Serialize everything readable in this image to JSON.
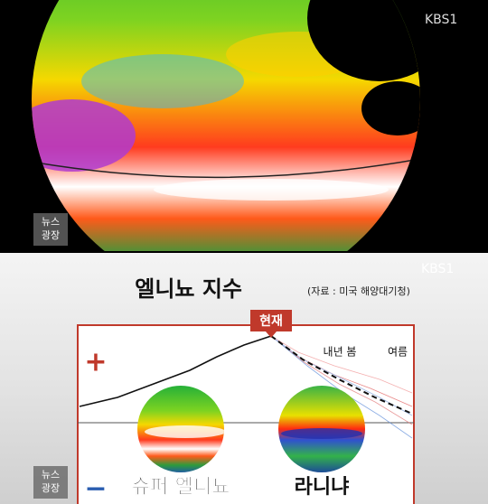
{
  "top_frame": {
    "broadcaster": "KBS1",
    "program_logo": [
      "뉴스",
      "광장"
    ]
  },
  "bottom_frame": {
    "broadcaster": "KBS1",
    "title": "엘니뇨 지수",
    "source": "(자료 : 미국 해양대기청)",
    "now_marker": "현재",
    "positive_sign": "+",
    "negative_sign": "−",
    "labels": {
      "next_spring": "내년 봄",
      "summer": "여름",
      "super_el_nino": "슈퍼 엘니뇨",
      "la_nina": "라니냐"
    },
    "program_logo": [
      "뉴스",
      "광장"
    ]
  }
}
